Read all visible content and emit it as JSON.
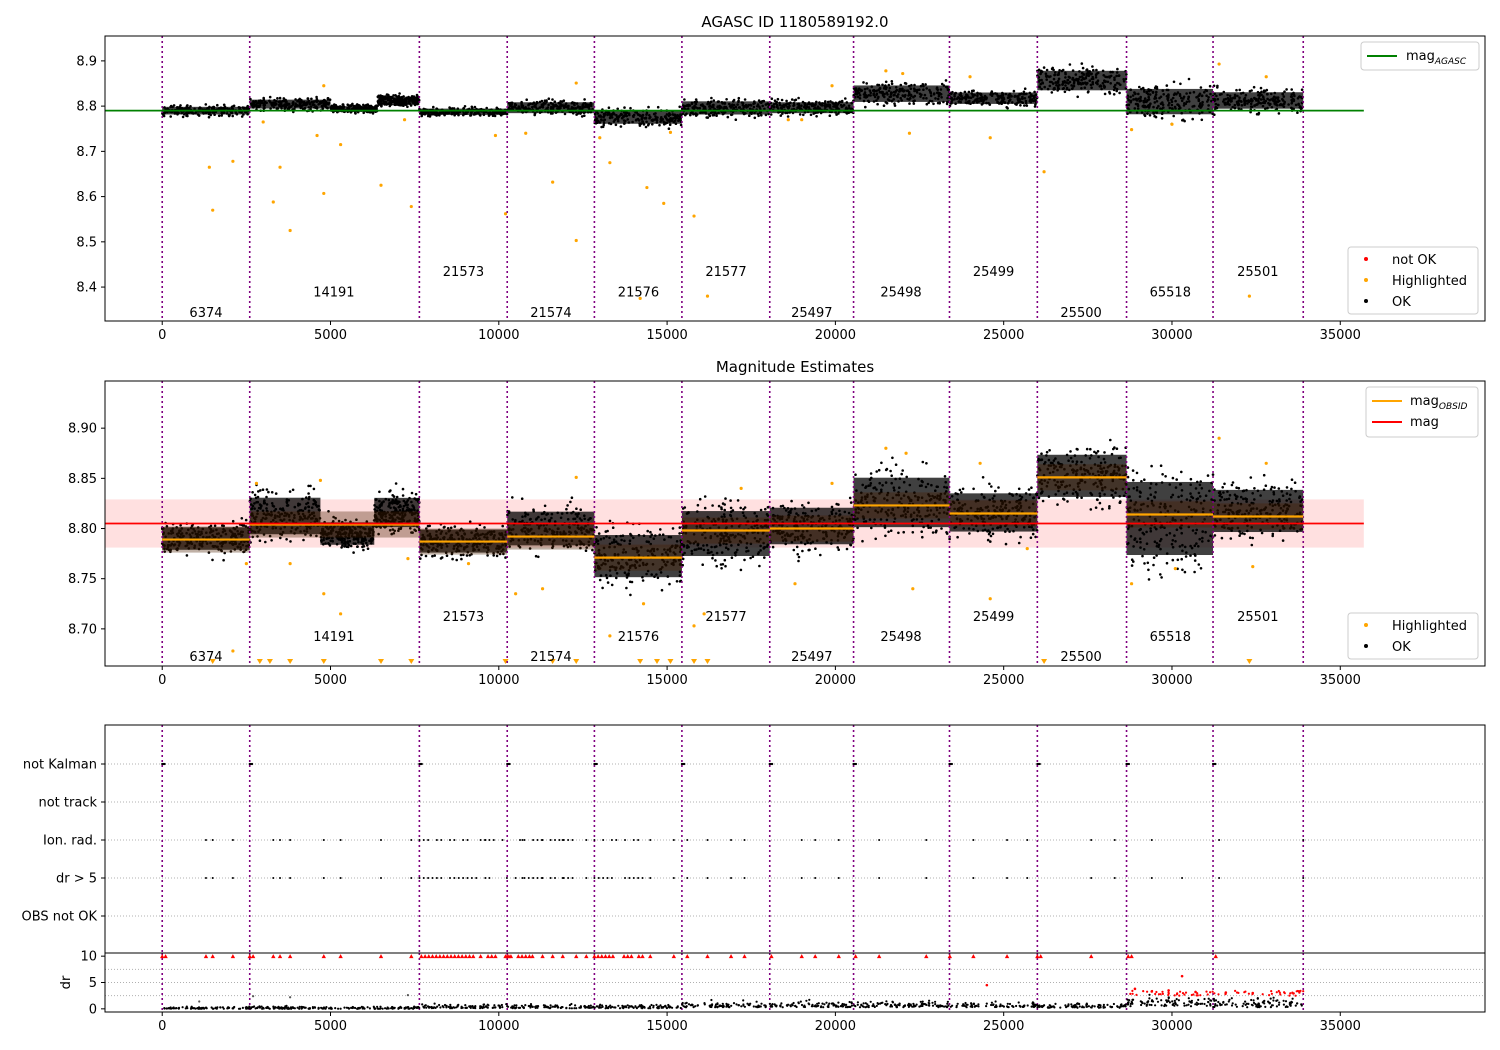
{
  "chart_data": [
    {
      "type": "scatter",
      "title": "AGASC ID 1180589192.0",
      "xlim": [
        -1700,
        39300
      ],
      "ylim": [
        8.325,
        8.955
      ],
      "xticks": [
        0,
        5000,
        10000,
        15000,
        20000,
        25000,
        30000,
        35000
      ],
      "yticks": [
        8.4,
        8.5,
        8.6,
        8.7,
        8.8,
        8.9
      ],
      "obs_boundaries": [
        0,
        2600,
        7640,
        10250,
        12840,
        15440,
        18050,
        20540,
        23390,
        26000,
        28650,
        31220,
        33900
      ],
      "obsids": [
        {
          "label": "6374",
          "x": 1300,
          "y": 8.345
        },
        {
          "label": "14191",
          "x": 5100,
          "y": 8.39
        },
        {
          "label": "21573",
          "x": 8950,
          "y": 8.435
        },
        {
          "label": "21574",
          "x": 11550,
          "y": 8.345
        },
        {
          "label": "21576",
          "x": 14150,
          "y": 8.39
        },
        {
          "label": "21577",
          "x": 16750,
          "y": 8.435
        },
        {
          "label": "25497",
          "x": 19300,
          "y": 8.345
        },
        {
          "label": "25498",
          "x": 21950,
          "y": 8.39
        },
        {
          "label": "25499",
          "x": 24700,
          "y": 8.435
        },
        {
          "label": "25500",
          "x": 27300,
          "y": 8.345
        },
        {
          "label": "65518",
          "x": 29950,
          "y": 8.39
        },
        {
          "label": "25501",
          "x": 32550,
          "y": 8.435
        }
      ],
      "ok_bands": [
        {
          "x": [
            0,
            2600
          ],
          "y": [
            8.775,
            8.805
          ]
        },
        {
          "x": [
            2600,
            5000
          ],
          "y": [
            8.787,
            8.822
          ]
        },
        {
          "x": [
            5000,
            6400
          ],
          "y": [
            8.782,
            8.805
          ]
        },
        {
          "x": [
            6400,
            7640
          ],
          "y": [
            8.795,
            8.828
          ]
        },
        {
          "x": [
            7640,
            10250
          ],
          "y": [
            8.775,
            8.8
          ]
        },
        {
          "x": [
            10250,
            12840
          ],
          "y": [
            8.775,
            8.818
          ]
        },
        {
          "x": [
            12840,
            15440
          ],
          "y": [
            8.75,
            8.8
          ]
        },
        {
          "x": [
            15440,
            18050
          ],
          "y": [
            8.77,
            8.822
          ]
        },
        {
          "x": [
            18050,
            20540
          ],
          "y": [
            8.775,
            8.818
          ]
        },
        {
          "x": [
            20540,
            23390
          ],
          "y": [
            8.795,
            8.86
          ]
        },
        {
          "x": [
            23390,
            26000
          ],
          "y": [
            8.795,
            8.84
          ]
        },
        {
          "x": [
            26000,
            28650
          ],
          "y": [
            8.818,
            8.895
          ]
        },
        {
          "x": [
            28650,
            31220
          ],
          "y": [
            8.76,
            8.86
          ]
        },
        {
          "x": [
            31220,
            33900
          ],
          "y": [
            8.78,
            8.845
          ]
        }
      ],
      "highlighted": [
        {
          "x": 1400,
          "y": 8.665
        },
        {
          "x": 1500,
          "y": 8.57
        },
        {
          "x": 2100,
          "y": 8.678
        },
        {
          "x": 3300,
          "y": 8.588
        },
        {
          "x": 3500,
          "y": 8.665
        },
        {
          "x": 3800,
          "y": 8.525
        },
        {
          "x": 4800,
          "y": 8.607
        },
        {
          "x": 5300,
          "y": 8.715
        },
        {
          "x": 6500,
          "y": 8.625
        },
        {
          "x": 7400,
          "y": 8.578
        },
        {
          "x": 10200,
          "y": 8.562
        },
        {
          "x": 11600,
          "y": 8.632
        },
        {
          "x": 12300,
          "y": 8.503
        },
        {
          "x": 13300,
          "y": 8.675
        },
        {
          "x": 14200,
          "y": 8.375
        },
        {
          "x": 14400,
          "y": 8.62
        },
        {
          "x": 14900,
          "y": 8.585
        },
        {
          "x": 15800,
          "y": 8.557
        },
        {
          "x": 16200,
          "y": 8.38
        },
        {
          "x": 26200,
          "y": 8.655
        },
        {
          "x": 32300,
          "y": 8.38
        },
        {
          "x": 4800,
          "y": 8.845
        },
        {
          "x": 12300,
          "y": 8.851
        },
        {
          "x": 21500,
          "y": 8.878
        },
        {
          "x": 22000,
          "y": 8.872
        },
        {
          "x": 24000,
          "y": 8.865
        },
        {
          "x": 31400,
          "y": 8.893
        },
        {
          "x": 32800,
          "y": 8.865
        },
        {
          "x": 19900,
          "y": 8.845
        },
        {
          "x": 3000,
          "y": 8.765
        },
        {
          "x": 9900,
          "y": 8.735
        },
        {
          "x": 10800,
          "y": 8.74
        },
        {
          "x": 13000,
          "y": 8.73
        },
        {
          "x": 15100,
          "y": 8.742
        },
        {
          "x": 19000,
          "y": 8.77
        },
        {
          "x": 22200,
          "y": 8.74
        },
        {
          "x": 24600,
          "y": 8.73
        },
        {
          "x": 4600,
          "y": 8.735
        },
        {
          "x": 7200,
          "y": 8.77
        },
        {
          "x": 28800,
          "y": 8.748
        },
        {
          "x": 18600,
          "y": 8.77
        },
        {
          "x": 30000,
          "y": 8.76
        }
      ],
      "mag_agasc": 8.79,
      "mag_agasc_xrange": [
        -1700,
        35700
      ],
      "legend_top": [
        {
          "label": "mag",
          "sub": "AGASC",
          "color": "#008000"
        }
      ],
      "legend_bottom": [
        {
          "label": "not OK",
          "color": "#ff0000"
        },
        {
          "label": "Highlighted",
          "color": "#ffa500"
        },
        {
          "label": "OK",
          "color": "#000000"
        }
      ]
    },
    {
      "type": "scatter",
      "title": "Magnitude Estimates",
      "xlim": [
        -1700,
        39300
      ],
      "ylim": [
        8.663,
        8.947
      ],
      "xticks": [
        0,
        5000,
        10000,
        15000,
        20000,
        25000,
        30000,
        35000
      ],
      "yticks": [
        8.7,
        8.75,
        8.8,
        8.85,
        8.9
      ],
      "obsids": [
        {
          "label": "6374",
          "x": 1300,
          "y": 8.673
        },
        {
          "label": "14191",
          "x": 5100,
          "y": 8.693
        },
        {
          "label": "21573",
          "x": 8950,
          "y": 8.713
        },
        {
          "label": "21574",
          "x": 11550,
          "y": 8.673
        },
        {
          "label": "21576",
          "x": 14150,
          "y": 8.693
        },
        {
          "label": "21577",
          "x": 16750,
          "y": 8.713
        },
        {
          "label": "25497",
          "x": 19300,
          "y": 8.673
        },
        {
          "label": "25498",
          "x": 21950,
          "y": 8.693
        },
        {
          "label": "25499",
          "x": 24700,
          "y": 8.713
        },
        {
          "label": "25500",
          "x": 27300,
          "y": 8.673
        },
        {
          "label": "65518",
          "x": 29950,
          "y": 8.693
        },
        {
          "label": "25501",
          "x": 32550,
          "y": 8.713
        }
      ],
      "mag_band": [
        8.781,
        8.829
      ],
      "mag": 8.805,
      "mag_xrange": [
        -1700,
        35700
      ],
      "mag_obsid": [
        {
          "x": [
            0,
            2600
          ],
          "y": 8.789
        },
        {
          "x": [
            2600,
            7640
          ],
          "y": 8.804
        },
        {
          "x": [
            7640,
            10250
          ],
          "y": 8.787
        },
        {
          "x": [
            10250,
            12840
          ],
          "y": 8.792
        },
        {
          "x": [
            12840,
            15440
          ],
          "y": 8.771
        },
        {
          "x": [
            15440,
            18050
          ],
          "y": 8.798
        },
        {
          "x": [
            18050,
            20540
          ],
          "y": 8.8
        },
        {
          "x": [
            20540,
            23390
          ],
          "y": 8.823
        },
        {
          "x": [
            23390,
            26000
          ],
          "y": 8.815
        },
        {
          "x": [
            26000,
            28650
          ],
          "y": 8.851
        },
        {
          "x": [
            28650,
            31220
          ],
          "y": 8.814
        },
        {
          "x": [
            31220,
            33900
          ],
          "y": 8.812
        }
      ],
      "ok_bands": [
        {
          "x": [
            0,
            2600
          ],
          "y": [
            8.77,
            8.81
          ]
        },
        {
          "x": [
            2600,
            4700
          ],
          "y": [
            8.78,
            8.845
          ]
        },
        {
          "x": [
            4700,
            6300
          ],
          "y": [
            8.775,
            8.815
          ]
        },
        {
          "x": [
            6300,
            7640
          ],
          "y": [
            8.79,
            8.842
          ]
        },
        {
          "x": [
            7640,
            10250
          ],
          "y": [
            8.767,
            8.808
          ]
        },
        {
          "x": [
            10250,
            12840
          ],
          "y": [
            8.77,
            8.83
          ]
        },
        {
          "x": [
            12840,
            15440
          ],
          "y": [
            8.735,
            8.81
          ]
        },
        {
          "x": [
            15440,
            18050
          ],
          "y": [
            8.755,
            8.835
          ]
        },
        {
          "x": [
            18050,
            20540
          ],
          "y": [
            8.77,
            8.835
          ]
        },
        {
          "x": [
            20540,
            23390
          ],
          "y": [
            8.782,
            8.87
          ]
        },
        {
          "x": [
            23390,
            26000
          ],
          "y": [
            8.782,
            8.85
          ]
        },
        {
          "x": [
            26000,
            28650
          ],
          "y": [
            8.815,
            8.89
          ]
        },
        {
          "x": [
            28650,
            31220
          ],
          "y": [
            8.745,
            8.875
          ]
        },
        {
          "x": [
            31220,
            33900
          ],
          "y": [
            8.78,
            8.855
          ]
        }
      ],
      "highlighted": [
        {
          "x": 2500,
          "y": 8.765
        },
        {
          "x": 2800,
          "y": 8.845
        },
        {
          "x": 4700,
          "y": 8.848
        },
        {
          "x": 4800,
          "y": 8.735
        },
        {
          "x": 5300,
          "y": 8.715
        },
        {
          "x": 12300,
          "y": 8.851
        },
        {
          "x": 13300,
          "y": 8.693
        },
        {
          "x": 15800,
          "y": 8.703
        },
        {
          "x": 16100,
          "y": 8.715
        },
        {
          "x": 18800,
          "y": 8.745
        },
        {
          "x": 19900,
          "y": 8.845
        },
        {
          "x": 21500,
          "y": 8.88
        },
        {
          "x": 22100,
          "y": 8.875
        },
        {
          "x": 24300,
          "y": 8.865
        },
        {
          "x": 31400,
          "y": 8.89
        },
        {
          "x": 32800,
          "y": 8.865
        },
        {
          "x": 2100,
          "y": 8.678
        },
        {
          "x": 10500,
          "y": 8.735
        },
        {
          "x": 11300,
          "y": 8.74
        },
        {
          "x": 14300,
          "y": 8.725
        },
        {
          "x": 22300,
          "y": 8.74
        },
        {
          "x": 24600,
          "y": 8.73
        },
        {
          "x": 28800,
          "y": 8.745
        },
        {
          "x": 32400,
          "y": 8.762
        },
        {
          "x": 3800,
          "y": 8.765
        },
        {
          "x": 7300,
          "y": 8.77
        },
        {
          "x": 9100,
          "y": 8.765
        },
        {
          "x": 17200,
          "y": 8.84
        },
        {
          "x": 25700,
          "y": 8.78
        },
        {
          "x": 30100,
          "y": 8.76
        }
      ],
      "low_markers": [
        1500,
        2900,
        3200,
        3800,
        4800,
        6500,
        7400,
        10200,
        11600,
        12300,
        14200,
        14700,
        15100,
        15800,
        16200,
        26200,
        32300
      ],
      "legend_top": [
        {
          "label": "mag",
          "sub": "OBSID",
          "color": "#ffa500"
        },
        {
          "label": "mag",
          "sub": "",
          "color": "#ff0000"
        }
      ],
      "legend_bottom": [
        {
          "label": "Highlighted",
          "color": "#ffa500"
        },
        {
          "label": "OK",
          "color": "#000000"
        }
      ]
    },
    {
      "type": "scatter",
      "title": "",
      "xlim": [
        -1700,
        39300
      ],
      "flag_categories": [
        "not Kalman",
        "not track",
        "Ion. rad.",
        "dr > 5",
        "OBS not OK"
      ],
      "not_kalman_x": [
        0,
        2600,
        7640,
        10250,
        12840,
        15440,
        18050,
        20540,
        23390,
        26000,
        28650,
        31220
      ],
      "ion_rad_x": [
        1300,
        1500,
        2100,
        3300,
        3500,
        3800,
        4800,
        5300,
        6500,
        7400,
        9600,
        10700,
        11300,
        11900,
        12600,
        14500,
        15200,
        15600,
        16200,
        16900,
        17300,
        19000,
        19400,
        20100,
        21300,
        22700,
        24100,
        25100,
        25700,
        27600,
        28300,
        29400,
        31400,
        33900
      ],
      "ion_rad_dense": [
        [
          7640,
          10250
        ],
        [
          10500,
          12300
        ],
        [
          12840,
          14300
        ]
      ],
      "dr_gt5_x": [
        1300,
        1500,
        2100,
        3300,
        3500,
        3800,
        4800,
        5300,
        6500,
        7400,
        9600,
        10700,
        11300,
        11900,
        12600,
        14500,
        15200,
        15600,
        16200,
        16900,
        17300,
        19000,
        19400,
        20100,
        21300,
        22700,
        24100,
        25100,
        25700,
        27600,
        28300,
        29400,
        30300,
        31400,
        33900
      ],
      "dr_gt5_dense": [
        [
          7640,
          10250
        ],
        [
          10500,
          12300
        ],
        [
          12840,
          14300
        ]
      ]
    },
    {
      "type": "scatter",
      "title": "",
      "ylabel": "dr",
      "xlim": [
        -1700,
        39300
      ],
      "ylim": [
        -0.6,
        10.6
      ],
      "xticks": [
        0,
        5000,
        10000,
        15000,
        20000,
        25000,
        30000,
        35000
      ],
      "yticks": [
        0,
        5,
        10
      ],
      "dr_bands": [
        {
          "x": [
            0,
            7640
          ],
          "y": [
            0.0,
            0.6
          ]
        },
        {
          "x": [
            7640,
            15440
          ],
          "y": [
            0.1,
            1.1
          ]
        },
        {
          "x": [
            15440,
            20540
          ],
          "y": [
            0.3,
            1.9
          ]
        },
        {
          "x": [
            20540,
            26000
          ],
          "y": [
            0.3,
            1.7
          ]
        },
        {
          "x": [
            26000,
            28650
          ],
          "y": [
            0.2,
            1.3
          ]
        },
        {
          "x": [
            28650,
            31220
          ],
          "y": [
            0.5,
            3.2
          ]
        },
        {
          "x": [
            31220,
            33900
          ],
          "y": [
            0.3,
            2.6
          ]
        }
      ],
      "red_clipped_x": [
        0,
        100,
        1300,
        1500,
        2100,
        2600,
        2700,
        3300,
        3500,
        3800,
        4800,
        5300,
        6500,
        7400,
        10200,
        10300,
        11000,
        11300,
        11600,
        11900,
        12300,
        12600,
        14500,
        15200,
        15600,
        16200,
        16900,
        17300,
        18100,
        19000,
        19400,
        20100,
        20600,
        21300,
        22700,
        23400,
        24100,
        25100,
        26000,
        26100,
        27600,
        28700,
        28800,
        31300
      ],
      "red_clipped_dense": [
        [
          7700,
          10000
        ],
        [
          10250,
          11000
        ],
        [
          12840,
          14300
        ]
      ],
      "red_points": [
        {
          "x": 24500,
          "y": 4.5
        },
        {
          "x": 30300,
          "y": 6.2
        },
        {
          "x": 28900,
          "y": 3.8
        },
        {
          "x": 29400,
          "y": 3.3
        },
        {
          "x": 29900,
          "y": 3.5
        },
        {
          "x": 30700,
          "y": 3.2
        },
        {
          "x": 31600,
          "y": 3.1
        },
        {
          "x": 32400,
          "y": 3.0
        }
      ],
      "gray_points": [
        {
          "x": 2700,
          "y": 2.4
        },
        {
          "x": 3800,
          "y": 2.2
        },
        {
          "x": 7300,
          "y": 2.6
        },
        {
          "x": 1100,
          "y": 1.4
        }
      ]
    }
  ]
}
